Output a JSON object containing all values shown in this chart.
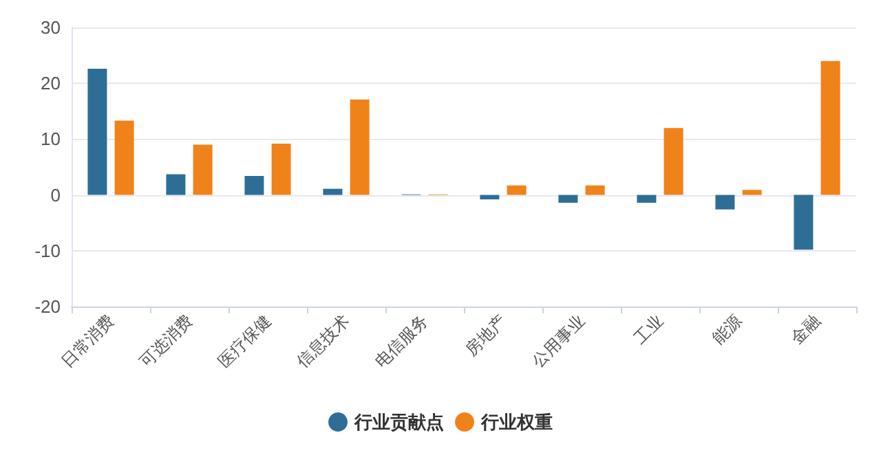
{
  "chart_data": {
    "type": "bar",
    "categories": [
      "日常消费",
      "可选消费",
      "医疗保健",
      "信息技术",
      "电信服务",
      "房地产",
      "公用事业",
      "工业",
      "能源",
      "金融"
    ],
    "series": [
      {
        "name": "行业贡献点",
        "color": "#2e6e96",
        "values": [
          22.6,
          3.7,
          3.4,
          1.1,
          0.1,
          -0.8,
          -1.4,
          -1.4,
          -2.6,
          -9.8
        ]
      },
      {
        "name": "行业权重",
        "color": "#f0821a",
        "values": [
          13.3,
          9.0,
          9.2,
          17.1,
          0.1,
          1.7,
          1.7,
          12.0,
          0.9,
          24.0
        ]
      }
    ],
    "ylim": [
      -20,
      30
    ],
    "yticks": [
      -20,
      -10,
      0,
      10,
      20,
      30
    ],
    "grid": "y",
    "legend": "bottom"
  }
}
